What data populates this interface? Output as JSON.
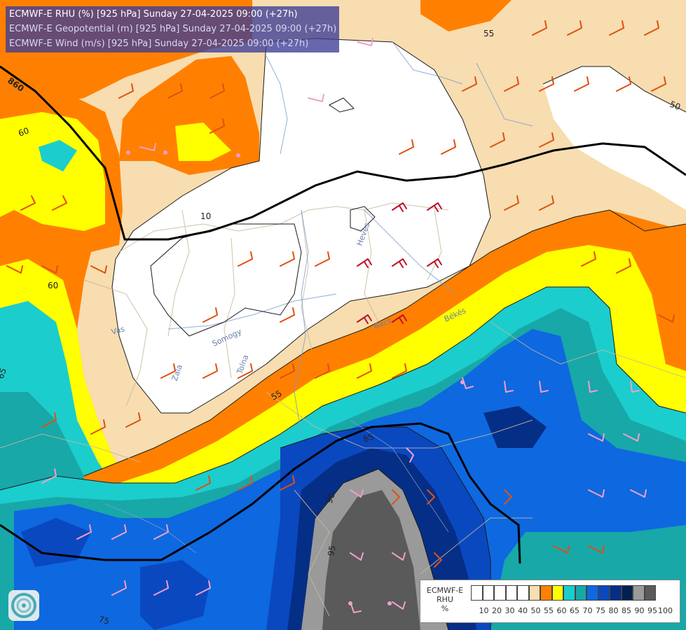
{
  "titles": {
    "rhu": "ECMWF-E RHU (%) [925 hPa] Sunday 27-04-2025 09:00 (+27h)",
    "geopotential": "ECMWF-E Geopotential (m) [925 hPa] Sunday 27-04-2025 09:00 (+27h)",
    "wind": "ECMWF-E Wind (m/s) [925 hPa] Sunday 27-04-2025 09:00 (+27h)"
  },
  "legend": {
    "title_line1": "ECMWF-E",
    "title_line2": "RHU",
    "title_line3": "%",
    "colors": [
      "#ffffff",
      "#ffffff",
      "#ffffff",
      "#ffffff",
      "#ffffff",
      "#f7ddb0",
      "#ff8000",
      "#ffff00",
      "#1ccdcd",
      "#18a8a8",
      "#0e68e0",
      "#0a48c0",
      "#052e86",
      "#002050",
      "#9a9a9a",
      "#5a5a5a"
    ],
    "ticks": [
      "10",
      "20",
      "30",
      "40",
      "50",
      "55",
      "60",
      "65",
      "70",
      "75",
      "80",
      "85",
      "90",
      "95",
      "100"
    ]
  },
  "contour_labels": {
    "geo_860": "860",
    "rhu_55_top": "55",
    "rhu_50_right": "50",
    "rhu_60_left": "60",
    "rhu_60_mid": "60",
    "rhu_65_left": "65",
    "rhu_55_center": "55",
    "rhu_10": "10",
    "rhu_85": "85",
    "rhu_90": "90",
    "rhu_75": "75",
    "rhu_95": "95"
  },
  "places": {
    "vas": "Vas",
    "zala": "Zala",
    "somogy": "Somogy",
    "tolna": "Tolna",
    "heves": "Heves",
    "bacs": "Bács",
    "bekes": "Békés"
  },
  "icons": {
    "logo": "ogimet-logo-icon"
  }
}
